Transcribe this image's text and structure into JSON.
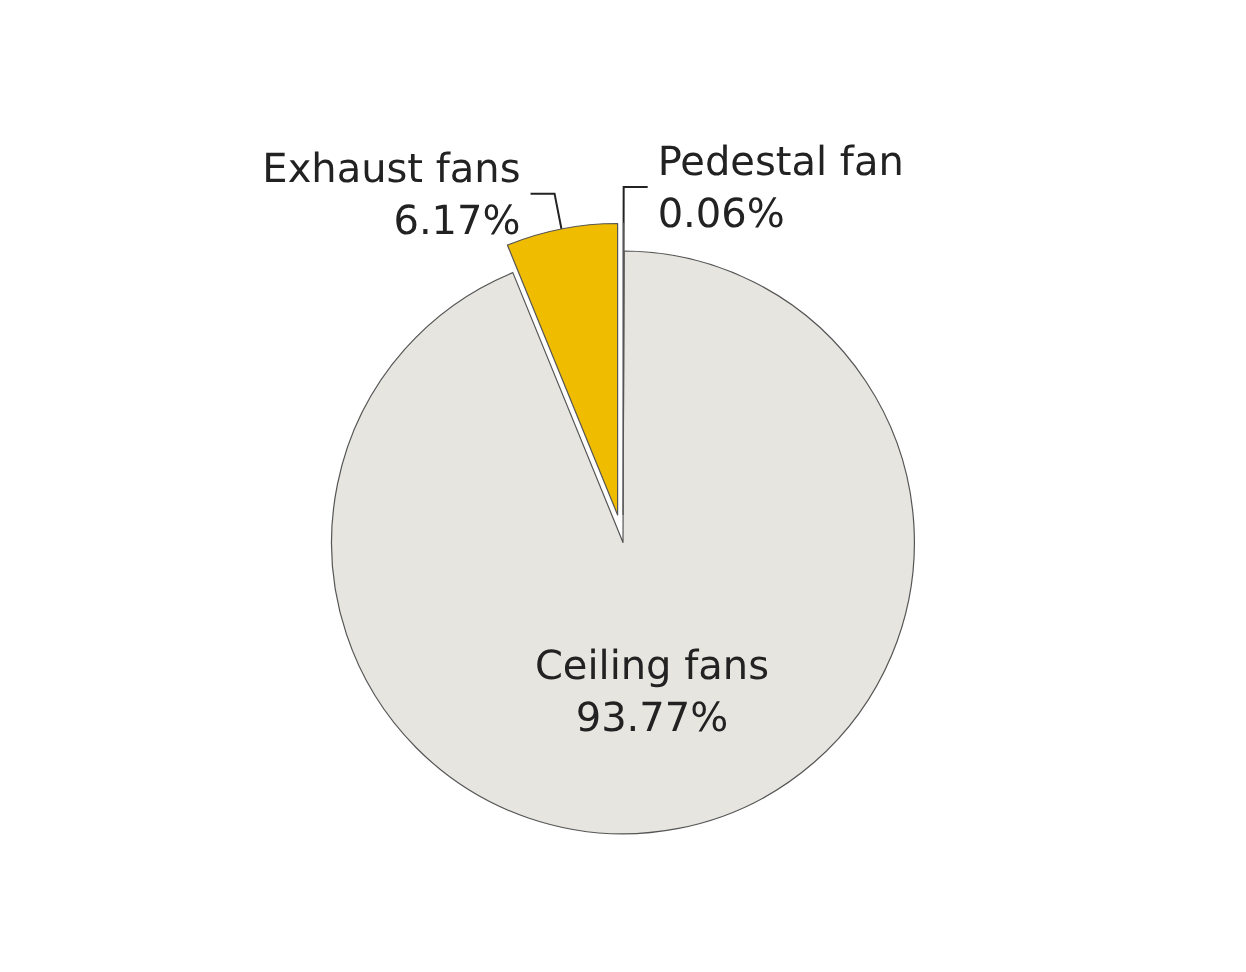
{
  "chart_data": {
    "type": "pie",
    "categories": [
      "Pedestal fan",
      "Ceiling fans",
      "Exhaust fans"
    ],
    "values": [
      0.06,
      93.77,
      6.17
    ],
    "colors": [
      "#ffffff",
      "#e6e5df",
      "#f0bc00"
    ],
    "value_labels": [
      "0.06%",
      "93.77%",
      "6.17%"
    ]
  }
}
